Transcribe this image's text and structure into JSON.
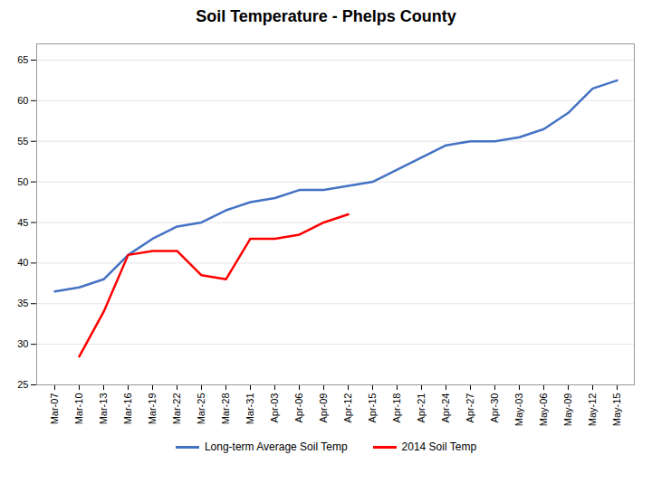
{
  "chart_data": {
    "type": "line",
    "title": "Soil Temperature - Phelps County",
    "categories": [
      "Mar-07",
      "Mar-10",
      "Mar-13",
      "Mar-16",
      "Mar-19",
      "Mar-22",
      "Mar-25",
      "Mar-28",
      "Mar-31",
      "Apr-03",
      "Apr-06",
      "Apr-09",
      "Apr-12",
      "Apr-15",
      "Apr-18",
      "Apr-21",
      "Apr-24",
      "Apr-27",
      "Apr-30",
      "May-03",
      "May-06",
      "May-09",
      "May-12",
      "May-15"
    ],
    "series": [
      {
        "name": "Long-term Average Soil Temp",
        "color": "#4472C4",
        "values": [
          36.5,
          37.0,
          38.0,
          41.0,
          43.0,
          44.5,
          45.0,
          46.5,
          47.5,
          48.0,
          49.0,
          49.0,
          49.5,
          50.0,
          51.5,
          53.0,
          54.5,
          55.0,
          55.0,
          55.5,
          56.5,
          58.5,
          61.5,
          62.5
        ]
      },
      {
        "name": "2014 Soil Temp",
        "color": "#FF0000",
        "values": [
          null,
          28.5,
          34.0,
          41.0,
          41.5,
          41.5,
          38.5,
          38.0,
          43.0,
          43.0,
          43.5,
          45.0,
          46.0,
          null,
          null,
          null,
          null,
          null,
          null,
          null,
          null,
          null,
          null,
          null
        ]
      }
    ],
    "ylim": [
      25,
      67
    ],
    "yticks": [
      25,
      30,
      35,
      40,
      45,
      50,
      55,
      60,
      65
    ],
    "grid": true,
    "legend": "bottom"
  }
}
